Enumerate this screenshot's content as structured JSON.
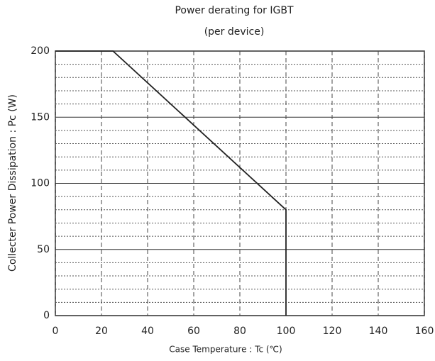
{
  "chart_data": {
    "type": "line",
    "title": "Power derating for IGBT",
    "subtitle": "(per device)",
    "x_label": "Case Temperature : Tc (℃)",
    "y_label": "Collecter Power Dissipation : Pc (W)",
    "series": [
      {
        "color": "#222222",
        "x": [
          0,
          25,
          100,
          100
        ],
        "values": [
          200,
          200,
          80,
          0
        ]
      }
    ],
    "xlim": [
      0,
      160
    ],
    "xticks": [
      0,
      20,
      40,
      60,
      80,
      100,
      120,
      140,
      160
    ],
    "ylim": [
      0,
      200
    ],
    "yticks": [
      0,
      50,
      100,
      150,
      200
    ],
    "minor_yticks": [
      10,
      20,
      30,
      40,
      60,
      70,
      80,
      90,
      110,
      120,
      130,
      140,
      160,
      170,
      180,
      190
    ],
    "grid": true
  }
}
